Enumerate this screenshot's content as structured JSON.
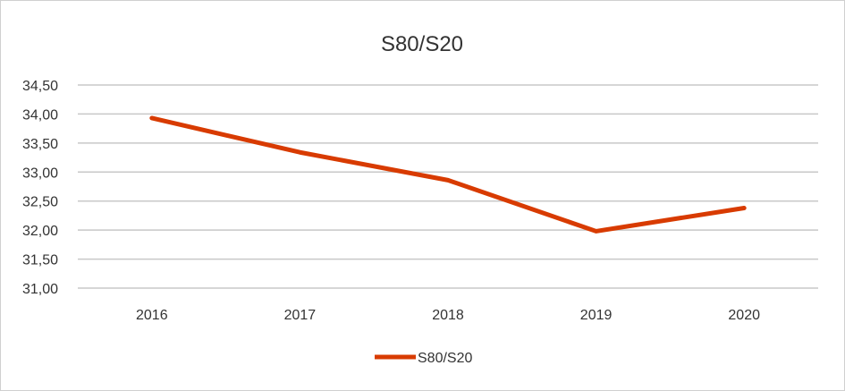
{
  "chart_data": {
    "type": "line",
    "title": "S80/S20",
    "categories": [
      "2016",
      "2017",
      "2018",
      "2019",
      "2020"
    ],
    "series": [
      {
        "name": "S80/S20",
        "values": [
          33.93,
          33.34,
          32.86,
          31.98,
          32.38
        ],
        "color": "#d83b01"
      }
    ],
    "yticks": [
      "31,00",
      "31,50",
      "32,00",
      "32,50",
      "33,00",
      "33,50",
      "34,00",
      "34,50"
    ],
    "ylim": [
      31,
      34.5
    ],
    "xlabel": "",
    "ylabel": "",
    "grid": true,
    "legend": "bottom"
  }
}
